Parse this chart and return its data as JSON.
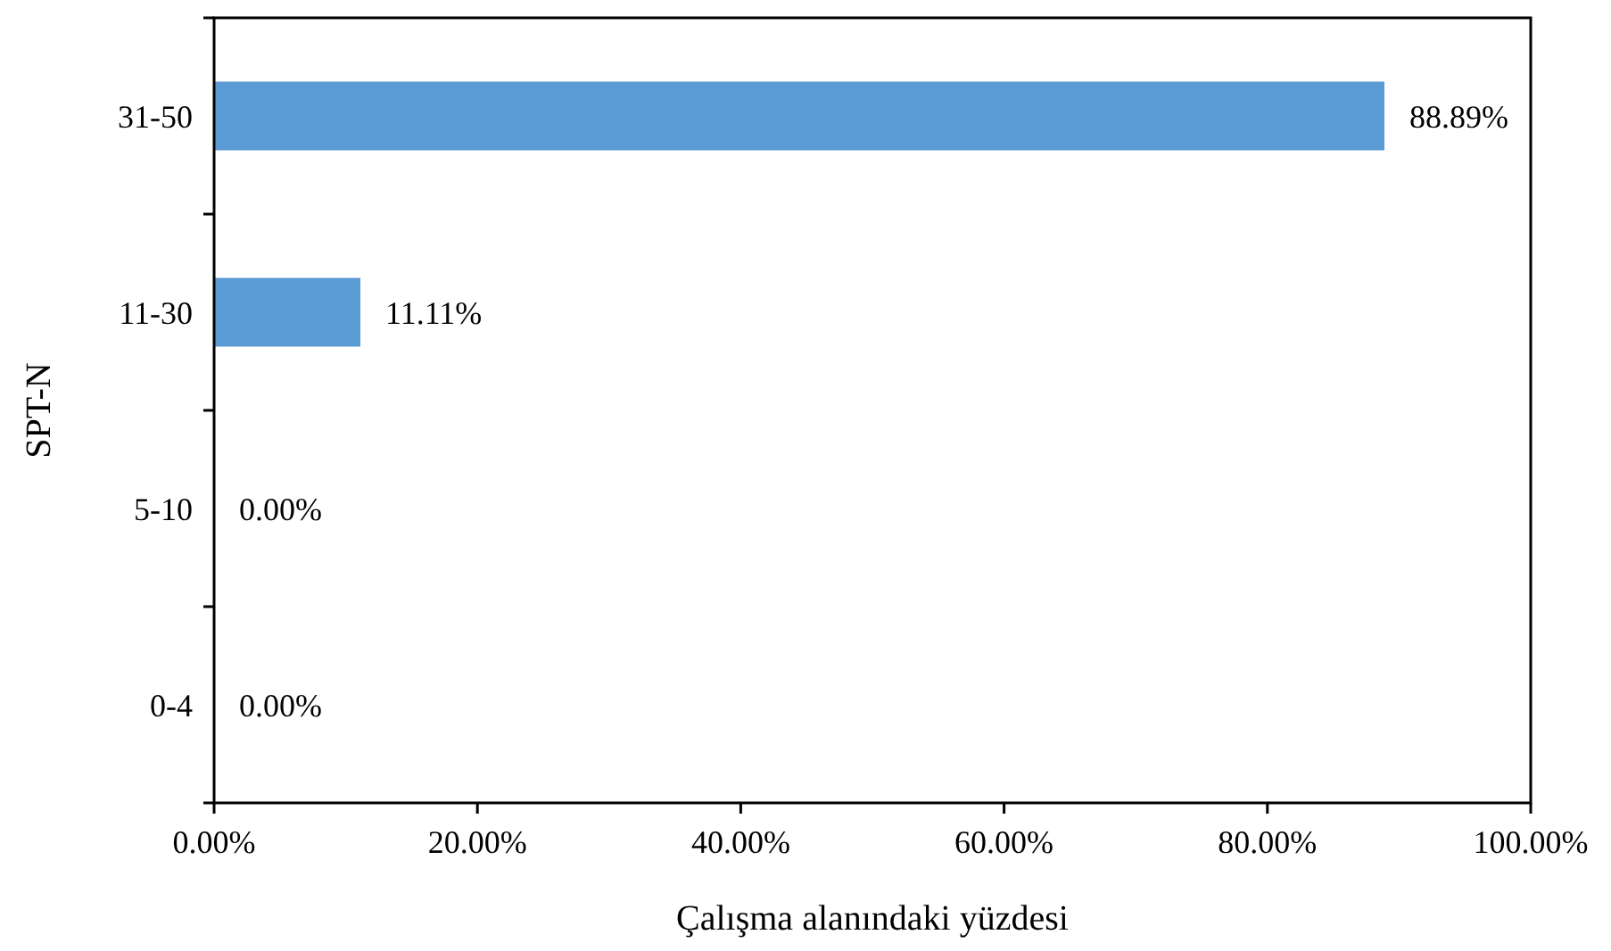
{
  "chart_data": {
    "type": "bar",
    "orientation": "horizontal",
    "categories": [
      "31-50",
      "11-30",
      "5-10",
      "0-4"
    ],
    "values": [
      88.89,
      11.11,
      0,
      0
    ],
    "color": "#5b9bd5",
    "value_labels": [
      "88.89%",
      "11.11%",
      "0.00%",
      "0.00%"
    ],
    "xlim": [
      0,
      100
    ],
    "xticks": [
      {
        "value": 0,
        "label": "0.00%"
      },
      {
        "value": 20,
        "label": "20.00%"
      },
      {
        "value": 40,
        "label": "40.00%"
      },
      {
        "value": 60,
        "label": "60.00%"
      },
      {
        "value": 80,
        "label": "80.00%"
      },
      {
        "value": 100,
        "label": "100.00%"
      }
    ],
    "xlabel": "Çalışma alanındaki yüzdesi",
    "ylabel": "SPT-N",
    "grid": false
  }
}
